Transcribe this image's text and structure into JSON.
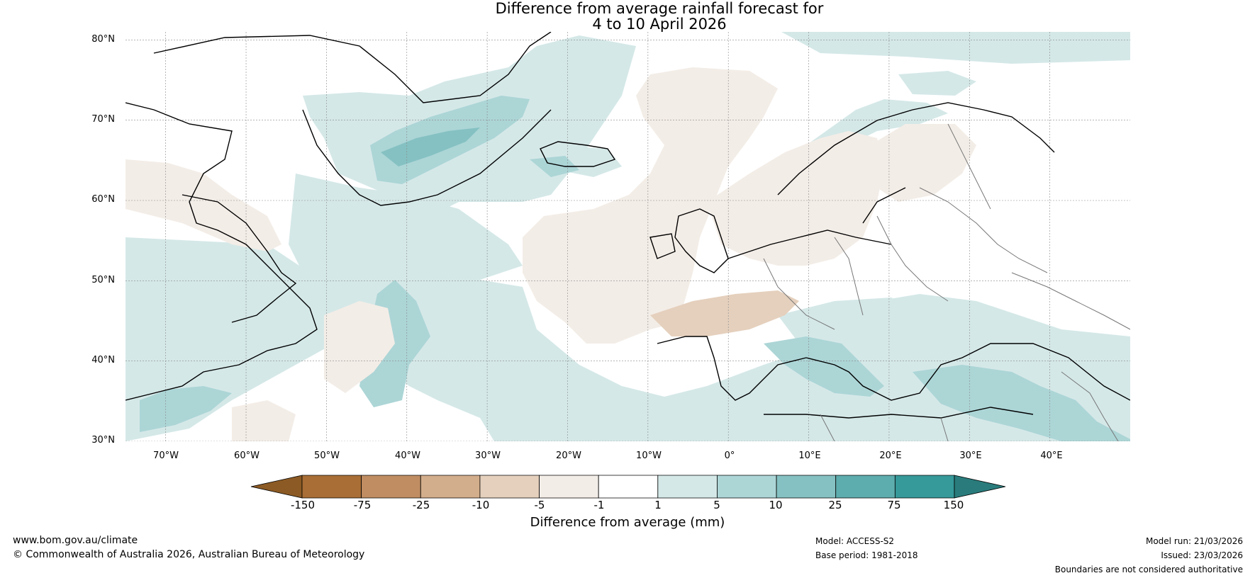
{
  "title": {
    "line1": "Difference from average rainfall forecast for",
    "line2": "4 to 10 April 2026"
  },
  "map": {
    "lat_labels": [
      "80°N",
      "70°N",
      "60°N",
      "50°N",
      "40°N",
      "30°N"
    ],
    "lon_labels": [
      "70°W",
      "60°W",
      "50°W",
      "40°W",
      "30°W",
      "20°W",
      "10°W",
      "0°",
      "10°E",
      "20°E",
      "30°E",
      "40°E"
    ],
    "region": "North Atlantic and Europe",
    "lon_range": [
      -75,
      50
    ],
    "lat_range": [
      30,
      81
    ],
    "ocean_color": "#ffffff",
    "coastline_color": "#000000",
    "border_color": "#777777"
  },
  "colorbar": {
    "label": "Difference from average (mm)",
    "tick_labels": [
      "-150",
      "-75",
      "-25",
      "-10",
      "-5",
      "-1",
      "1",
      "5",
      "10",
      "25",
      "75",
      "150"
    ],
    "colors": [
      "#8c5a24",
      "#a96e35",
      "#c08d62",
      "#d3ae8c",
      "#e5d0bd",
      "#f3ede7",
      "#ffffff",
      "#d5e8e8",
      "#acd5d6",
      "#85c1c2",
      "#5eadae",
      "#36999a",
      "#2a7c7c"
    ]
  },
  "footer": {
    "website": "www.bom.gov.au/climate",
    "copyright": "© Commonwealth of Australia 2026, Australian Bureau of Meteorology",
    "model": "Model: ACCESS-S2",
    "base_period": "Base period: 1981-2018",
    "model_run": "Model run: 21/03/2026",
    "issued": "Issued: 23/03/2026",
    "disclaimer": "Boundaries are not considered authoritative"
  }
}
